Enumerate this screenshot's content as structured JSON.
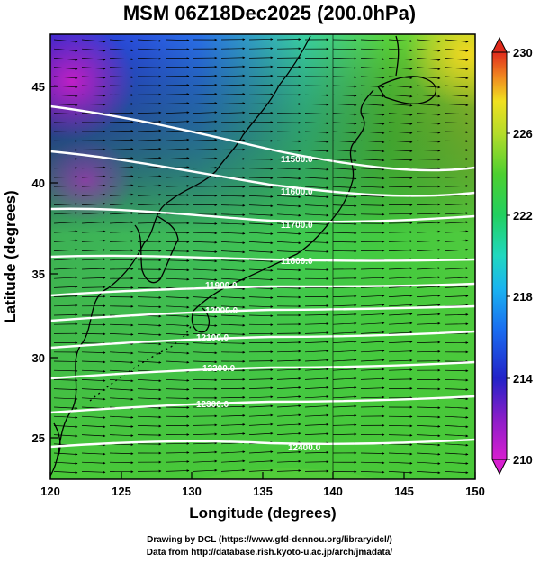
{
  "title": "MSM 06Z18Dec2025 (200.0hPa)",
  "x_axis": {
    "label": "Longitude (degrees)",
    "ticks": [
      "120",
      "125",
      "130",
      "135",
      "140",
      "145",
      "150"
    ]
  },
  "y_axis": {
    "label": "Latitude  (degrees)",
    "ticks": [
      "25",
      "30",
      "35",
      "40",
      "45"
    ]
  },
  "colorbar": {
    "ticks": [
      "210",
      "214",
      "218",
      "222",
      "226",
      "230"
    ],
    "min": 210,
    "max": 230
  },
  "contour_labels": [
    "11500.0",
    "11600.0",
    "11700.0",
    "11800.0",
    "11900.0",
    "12000.0",
    "12100.0",
    "12200.0",
    "12300.0",
    "12400.0"
  ],
  "credit": {
    "line1": "Drawing by DCL (https://www.gfd-dennou.org/library/dcl/)",
    "line2": "Data from http://database.rish.kyoto-u.ac.jp/arch/jmadata/"
  },
  "colors": {
    "frame": "#000000",
    "contour": "#ffffff",
    "vector": "#000000",
    "coast": "#000000"
  }
}
